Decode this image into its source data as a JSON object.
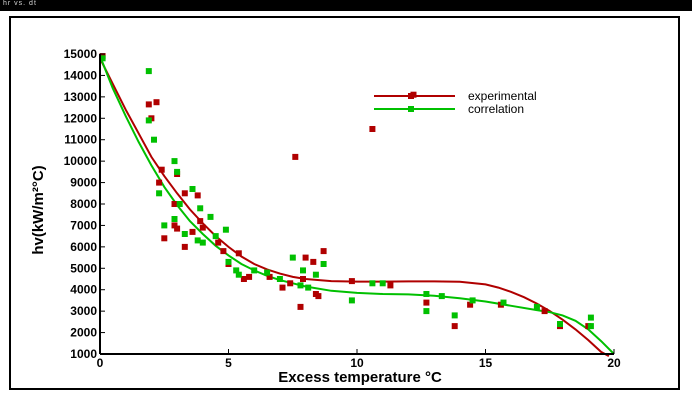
{
  "corner_label": "hr vs. dt",
  "colors": {
    "experimental": "#b00000",
    "correlation": "#00c000"
  },
  "chart_data": {
    "type": "scatter",
    "title": "",
    "xlabel": "Excess temperature °C",
    "ylabel": "hv(kW/m²°C)",
    "xlim": [
      0,
      20
    ],
    "ylim": [
      1000,
      15000
    ],
    "xticks": [
      0,
      5,
      10,
      15,
      20
    ],
    "yticks": [
      1000,
      2000,
      3000,
      4000,
      5000,
      6000,
      7000,
      8000,
      9000,
      10000,
      11000,
      12000,
      13000,
      14000,
      15000
    ],
    "grid": false,
    "legend_position": "top-right",
    "series": [
      {
        "name": "experimental",
        "color": "#b00000",
        "points": [
          [
            0.1,
            14900
          ],
          [
            1.9,
            12650
          ],
          [
            2.0,
            12000
          ],
          [
            2.2,
            12750
          ],
          [
            2.3,
            9000
          ],
          [
            2.4,
            9600
          ],
          [
            2.5,
            6400
          ],
          [
            2.9,
            8000
          ],
          [
            2.9,
            7000
          ],
          [
            3.0,
            6850
          ],
          [
            3.0,
            9400
          ],
          [
            3.3,
            6000
          ],
          [
            3.3,
            8500
          ],
          [
            3.6,
            6700
          ],
          [
            3.8,
            8400
          ],
          [
            3.9,
            7200
          ],
          [
            4.0,
            6900
          ],
          [
            4.6,
            6200
          ],
          [
            4.8,
            5800
          ],
          [
            5.0,
            5200
          ],
          [
            5.4,
            5700
          ],
          [
            5.6,
            4500
          ],
          [
            5.8,
            4600
          ],
          [
            6.6,
            4600
          ],
          [
            7.1,
            4100
          ],
          [
            7.4,
            4300
          ],
          [
            7.6,
            10200
          ],
          [
            7.8,
            3200
          ],
          [
            7.9,
            4500
          ],
          [
            8.0,
            5500
          ],
          [
            8.3,
            5300
          ],
          [
            8.4,
            3800
          ],
          [
            8.5,
            3700
          ],
          [
            8.7,
            5800
          ],
          [
            9.8,
            4400
          ],
          [
            10.6,
            11500
          ],
          [
            11.3,
            4200
          ],
          [
            12.2,
            13100
          ],
          [
            12.7,
            3400
          ],
          [
            13.8,
            2300
          ],
          [
            14.4,
            3300
          ],
          [
            15.6,
            3300
          ],
          [
            17.3,
            3000
          ],
          [
            17.9,
            2300
          ],
          [
            19.0,
            2300
          ]
        ]
      },
      {
        "name": "correlation",
        "color": "#00c000",
        "points": [
          [
            0.1,
            14800
          ],
          [
            1.9,
            14200
          ],
          [
            1.9,
            11900
          ],
          [
            2.1,
            11000
          ],
          [
            2.3,
            8500
          ],
          [
            2.5,
            7000
          ],
          [
            2.9,
            10000
          ],
          [
            3.0,
            9500
          ],
          [
            2.9,
            7300
          ],
          [
            3.1,
            8000
          ],
          [
            3.3,
            6600
          ],
          [
            3.6,
            8700
          ],
          [
            3.8,
            6300
          ],
          [
            3.9,
            7800
          ],
          [
            4.0,
            6200
          ],
          [
            4.3,
            7400
          ],
          [
            4.5,
            6500
          ],
          [
            4.9,
            6800
          ],
          [
            5.0,
            5300
          ],
          [
            5.3,
            4900
          ],
          [
            5.4,
            4700
          ],
          [
            6.0,
            4900
          ],
          [
            6.5,
            4800
          ],
          [
            7.0,
            4500
          ],
          [
            7.5,
            5500
          ],
          [
            7.8,
            4200
          ],
          [
            7.9,
            4900
          ],
          [
            8.1,
            4100
          ],
          [
            8.4,
            4700
          ],
          [
            8.7,
            5200
          ],
          [
            9.8,
            3500
          ],
          [
            10.6,
            4300
          ],
          [
            11.0,
            4300
          ],
          [
            12.7,
            3800
          ],
          [
            12.7,
            3000
          ],
          [
            13.3,
            3700
          ],
          [
            13.8,
            2800
          ],
          [
            14.5,
            3500
          ],
          [
            15.7,
            3400
          ],
          [
            17.0,
            3200
          ],
          [
            17.9,
            2400
          ],
          [
            19.1,
            2700
          ],
          [
            19.1,
            2300
          ]
        ]
      }
    ],
    "fit_lines": [
      {
        "name": "experimental",
        "color": "#b00000",
        "points": [
          [
            0,
            14800
          ],
          [
            0.5,
            13600
          ],
          [
            1,
            12400
          ],
          [
            1.5,
            11300
          ],
          [
            2,
            10200
          ],
          [
            2.5,
            9300
          ],
          [
            3,
            8500
          ],
          [
            3.5,
            7750
          ],
          [
            4,
            7100
          ],
          [
            4.5,
            6500
          ],
          [
            5,
            6000
          ],
          [
            5.5,
            5550
          ],
          [
            6,
            5200
          ],
          [
            6.5,
            4950
          ],
          [
            7,
            4750
          ],
          [
            7.5,
            4600
          ],
          [
            8,
            4500
          ],
          [
            9,
            4400
          ],
          [
            10,
            4380
          ],
          [
            11,
            4380
          ],
          [
            12,
            4390
          ],
          [
            13,
            4390
          ],
          [
            14,
            4370
          ],
          [
            15,
            4250
          ],
          [
            15.5,
            4100
          ],
          [
            16,
            3900
          ],
          [
            16.5,
            3650
          ],
          [
            17,
            3350
          ],
          [
            17.5,
            3000
          ],
          [
            18,
            2600
          ],
          [
            18.5,
            2150
          ],
          [
            19,
            1650
          ],
          [
            19.5,
            1100
          ],
          [
            19.8,
            900
          ]
        ]
      },
      {
        "name": "correlation",
        "color": "#00c000",
        "points": [
          [
            0,
            14900
          ],
          [
            0.5,
            13400
          ],
          [
            1,
            12100
          ],
          [
            1.5,
            10900
          ],
          [
            2,
            9800
          ],
          [
            2.5,
            8800
          ],
          [
            3,
            7950
          ],
          [
            3.5,
            7200
          ],
          [
            4,
            6600
          ],
          [
            4.5,
            6050
          ],
          [
            5,
            5600
          ],
          [
            5.5,
            5200
          ],
          [
            6,
            4900
          ],
          [
            6.5,
            4650
          ],
          [
            7,
            4450
          ],
          [
            7.5,
            4300
          ],
          [
            8,
            4150
          ],
          [
            9,
            3950
          ],
          [
            10,
            3850
          ],
          [
            11,
            3800
          ],
          [
            12,
            3780
          ],
          [
            13,
            3720
          ],
          [
            14,
            3600
          ],
          [
            15,
            3450
          ],
          [
            16,
            3250
          ],
          [
            17,
            3050
          ],
          [
            17.5,
            2950
          ],
          [
            18,
            2800
          ],
          [
            18.5,
            2550
          ],
          [
            19,
            2150
          ],
          [
            19.5,
            1600
          ],
          [
            20,
            1000
          ]
        ]
      }
    ]
  }
}
